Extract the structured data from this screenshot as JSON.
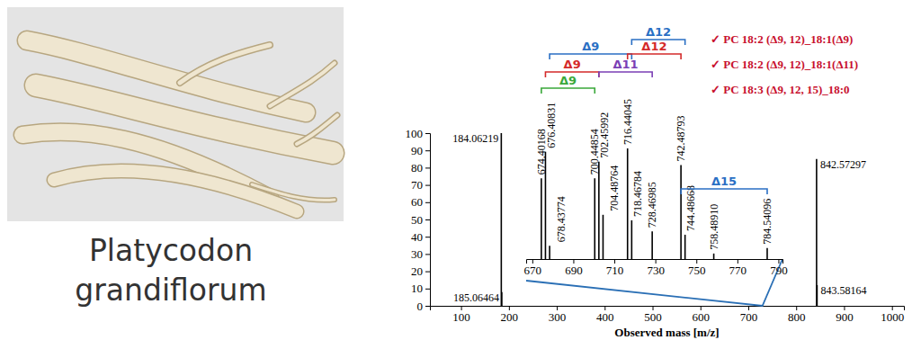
{
  "caption": [
    "Platycodon",
    "grandiflorum"
  ],
  "chart_data": [
    {
      "type": "bar",
      "x_label": "Observed mass [m/z]",
      "x": [
        184.06219,
        185.06464,
        842.57297,
        843.58164
      ],
      "values": [
        100,
        8,
        85,
        12
      ],
      "labels": [
        "184.06219",
        "185.06464",
        "842.57297",
        "843.58164"
      ],
      "color": "#000000",
      "xlim": [
        35,
        1025
      ],
      "xticks": [
        100,
        200,
        300,
        400,
        500,
        600,
        700,
        800,
        900,
        1000
      ],
      "ylim": [
        0,
        100
      ],
      "yticks": [
        0,
        10,
        20,
        30,
        40,
        50,
        60,
        70,
        80,
        90,
        100
      ]
    },
    {
      "type": "bar",
      "x": [
        674.40168,
        676.40831,
        678.43774,
        700.44854,
        702.45992,
        704.48764,
        716.44045,
        718.46784,
        728.46985,
        742.48793,
        744.48668,
        758.4891,
        784.54096
      ],
      "values": [
        73,
        97,
        12,
        73,
        88,
        40,
        100,
        35,
        25,
        85,
        22,
        5,
        10
      ],
      "labels": [
        "674.40168",
        "676.40831",
        "678.43774",
        "700.44854",
        "702.45992",
        "704.48764",
        "716.44045",
        "718.46784",
        "728.46985",
        "742.48793",
        "744.48668",
        "758.48910",
        "784.54096"
      ],
      "color": "#000000",
      "xlim": [
        667,
        792
      ],
      "xticks": [
        670,
        690,
        710,
        730,
        750,
        770,
        790
      ],
      "ylim": [
        0,
        100
      ],
      "tick_labels": "x",
      "annotations": [
        {
          "label": "Δ9",
          "from": 674.40168,
          "to": 700.44854,
          "color": "#3aa83a"
        },
        {
          "label": "Δ9",
          "from": 676.40831,
          "to": 702.45992,
          "color": "#d42a2a"
        },
        {
          "label": "Δ9",
          "from": 678.43774,
          "to": 718.46784,
          "color": "#2a6fc4"
        },
        {
          "label": "Δ11",
          "from": 702.45992,
          "to": 728.46985,
          "color": "#7b3fb5"
        },
        {
          "label": "Δ12",
          "from": 716.44045,
          "to": 742.48793,
          "color": "#d42a2a"
        },
        {
          "label": "Δ12",
          "from": 718.46784,
          "to": 744.48668,
          "color": "#2a6fc4"
        },
        {
          "label": "Δ15",
          "from": 742.48793,
          "to": 784.54096,
          "color": "#2a6fc4"
        }
      ],
      "assignments": [
        {
          "text": "✓ PC 18:2 (Δ9, 12)_18:1(Δ9)",
          "color": "#c8102e"
        },
        {
          "text": "✓ PC 18:2 (Δ9, 12)_18:1(Δ11)",
          "color": "#c8102e"
        },
        {
          "text": "✓ PC 18:3 (Δ9, 12, 15)_18:0",
          "color": "#c8102e"
        }
      ]
    }
  ]
}
